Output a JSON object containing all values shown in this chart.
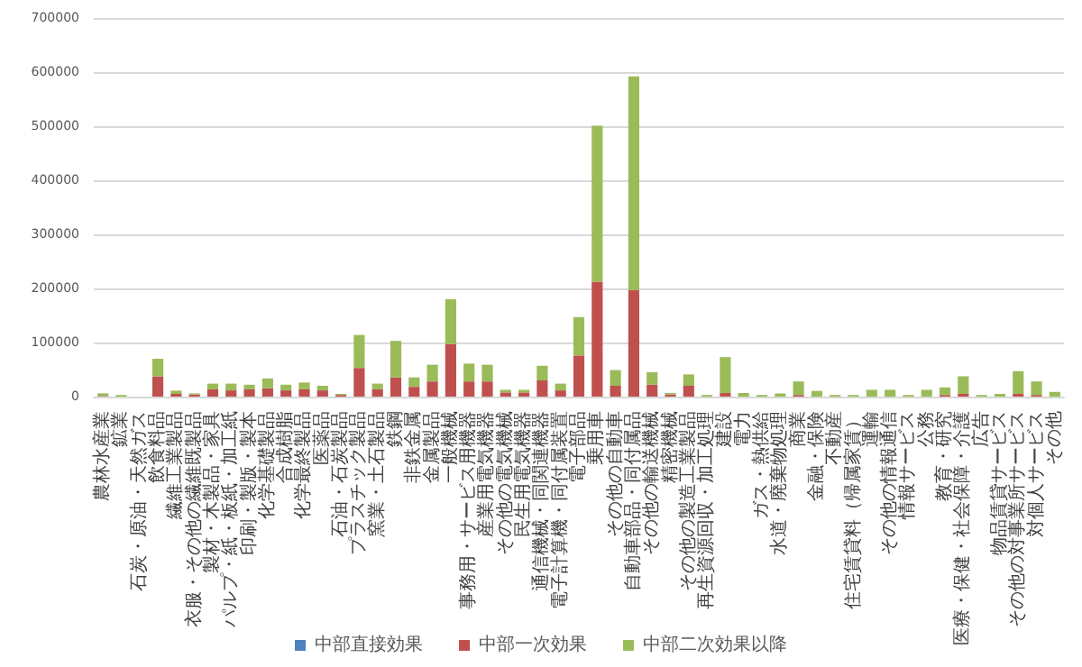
{
  "chart_data": {
    "type": "bar",
    "stacked": true,
    "categories": [
      "農林水産業",
      "鉱業",
      "石炭・原油・天然ガス",
      "飲食料品",
      "繊維工業製品",
      "衣服・その他の繊維既製品",
      "製材・木製品・家具",
      "パルプ・紙・板紙・加工紙",
      "印刷・製版・製本",
      "化学基礎製品",
      "合成樹脂",
      "化学最終製品",
      "医薬品",
      "石油・石炭製品",
      "プラスチック製品",
      "窯業・土石製品",
      "鉄鋼",
      "非鉄金属",
      "金属製品",
      "一般機械",
      "事務用・サービス用機器",
      "産業用電気機器",
      "その他の電気機械",
      "民生用電気機器",
      "通信機械・同関連機器",
      "電子計算機・同付属装置",
      "電子部品",
      "乗用車",
      "その他の自動車",
      "自動車部品・同付属品",
      "その他の輸送機械",
      "精密機械",
      "その他の製造工業製品",
      "再生資源回収・加工処理",
      "建設",
      "電力",
      "ガス・熱供給",
      "水道・廃棄物処理",
      "商業",
      "金融・保険",
      "不動産",
      "住宅賃貸料（帰属家賃）",
      "運輸",
      "その他の情報通信",
      "情報サービス",
      "公務",
      "教育・研究",
      "医療・保健・社会保障・介護",
      "広告",
      "物品賃貸サービス",
      "その他の対事業所サービス",
      "対個人サービス",
      "その他"
    ],
    "series": [
      {
        "name": "中部直接効果",
        "color": "#4f81bd",
        "values": [
          0,
          0,
          0,
          0,
          0,
          0,
          0,
          0,
          0,
          0,
          0,
          0,
          0,
          0,
          0,
          0,
          0,
          0,
          0,
          0,
          0,
          0,
          0,
          0,
          0,
          0,
          0,
          0,
          0,
          0,
          0,
          0,
          0,
          0,
          0,
          0,
          0,
          0,
          0,
          0,
          0,
          0,
          0,
          0,
          0,
          0,
          0,
          0,
          0,
          0,
          0,
          0,
          0
        ]
      },
      {
        "name": "中部一次効果",
        "color": "#c0504d",
        "values": [
          1000,
          0,
          0,
          37500,
          5000,
          4000,
          13500,
          11500,
          13500,
          15400,
          11500,
          13500,
          11500,
          3000,
          53000,
          13500,
          35500,
          18000,
          28000,
          97000,
          28000,
          28000,
          7700,
          7700,
          30000,
          11500,
          76000,
          212500,
          20000,
          197000,
          22000,
          4000,
          20000,
          0,
          6700,
          0,
          0,
          0,
          3000,
          0,
          0,
          0,
          0,
          0,
          0,
          0,
          3000,
          5000,
          0,
          0,
          5000,
          3000,
          0
        ]
      },
      {
        "name": "中部二次効果以降",
        "color": "#9bbb59",
        "values": [
          5000,
          3000,
          null,
          32500,
          6000,
          2000,
          10500,
          12500,
          8500,
          18200,
          10500,
          12500,
          8500,
          2000,
          61000,
          10500,
          67500,
          17500,
          31000,
          83000,
          33000,
          31000,
          4800,
          4800,
          27000,
          12500,
          71000,
          288500,
          29000,
          395000,
          23000,
          2700,
          21000,
          3000,
          66300,
          6700,
          3000,
          5800,
          25000,
          10500,
          3000,
          3000,
          12500,
          12500,
          3000,
          12500,
          14000,
          32500,
          3000,
          5000,
          42000,
          25000,
          8700
        ]
      }
    ],
    "ylim": [
      0,
      700000
    ],
    "yticks": [
      0,
      100000,
      200000,
      300000,
      400000,
      500000,
      600000,
      700000
    ],
    "grid": "y",
    "legend": "bottom"
  }
}
